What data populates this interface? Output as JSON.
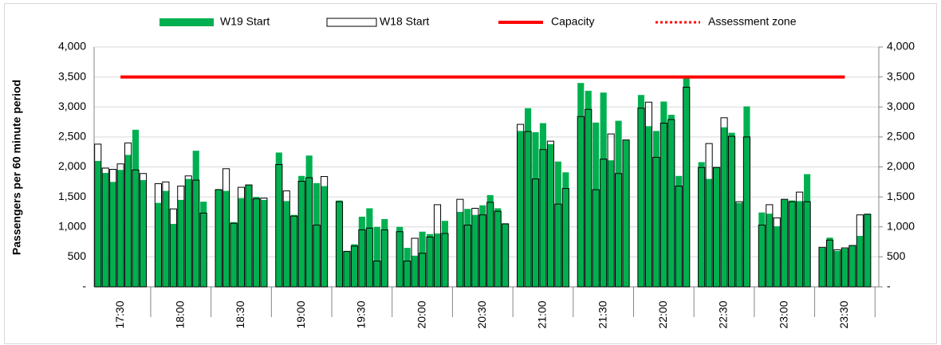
{
  "chart_data": {
    "type": "bar",
    "ylabel": "Passengers per 60 minute period",
    "categories": [
      null,
      null,
      null,
      "17:30",
      null,
      null,
      null,
      null,
      null,
      null,
      null,
      "18:00",
      null,
      null,
      null,
      null,
      null,
      null,
      null,
      "18:30",
      null,
      null,
      null,
      null,
      null,
      null,
      null,
      "19:00",
      null,
      null,
      null,
      null,
      null,
      null,
      null,
      "19:30",
      null,
      null,
      null,
      null,
      null,
      null,
      null,
      "20:00",
      null,
      null,
      null,
      null,
      null,
      null,
      null,
      "20:30",
      null,
      null,
      null,
      null,
      null,
      null,
      null,
      "21:00",
      null,
      null,
      null,
      null,
      null,
      null,
      null,
      "21:30",
      null,
      null,
      null,
      null,
      null,
      null,
      null,
      "22:00",
      null,
      null,
      null,
      null,
      null,
      null,
      null,
      "22:30",
      null,
      null,
      null,
      null,
      null,
      null,
      null,
      "23:00",
      null,
      null,
      null,
      null,
      null,
      null,
      null,
      "23:30",
      null,
      null,
      null,
      null
    ],
    "series": [
      {
        "name": "W19 Start",
        "kind": "bar",
        "color": "#00b050",
        "values": [
          2100,
          1900,
          1750,
          1950,
          2200,
          2620,
          1780,
          null,
          1400,
          1600,
          1050,
          1450,
          1800,
          2270,
          1420,
          null,
          1630,
          1600,
          1080,
          1480,
          1700,
          1500,
          1450,
          null,
          2240,
          1430,
          1200,
          1850,
          2190,
          1730,
          1680,
          null,
          1440,
          600,
          710,
          1170,
          1310,
          1000,
          1130,
          null,
          1000,
          650,
          520,
          920,
          880,
          890,
          1100,
          null,
          1250,
          1300,
          1200,
          1360,
          1530,
          1310,
          1060,
          null,
          2600,
          2980,
          2580,
          2730,
          2380,
          2090,
          1910,
          null,
          3400,
          3270,
          2740,
          3240,
          2110,
          2770,
          2450,
          null,
          3200,
          2680,
          2600,
          3090,
          2870,
          1850,
          3490,
          null,
          2080,
          1800,
          2000,
          2660,
          2570,
          1400,
          3010,
          null,
          1240,
          1220,
          1010,
          1460,
          1440,
          1430,
          1880,
          null,
          650,
          820,
          600,
          640,
          690,
          850,
          1220,
          null
        ]
      },
      {
        "name": "W18 Start",
        "kind": "outline",
        "color": "#000000",
        "values": [
          2380,
          1980,
          1960,
          2050,
          2400,
          1950,
          1890,
          null,
          1720,
          1750,
          1300,
          1680,
          1850,
          1780,
          1230,
          null,
          1620,
          1970,
          1060,
          1660,
          1700,
          1470,
          1480,
          null,
          2040,
          1600,
          1180,
          1760,
          1820,
          1030,
          1840,
          null,
          1420,
          590,
          680,
          950,
          980,
          430,
          950,
          null,
          920,
          430,
          810,
          560,
          830,
          1370,
          890,
          null,
          1460,
          1030,
          1310,
          1200,
          1410,
          1260,
          1050,
          null,
          2710,
          2590,
          1800,
          2290,
          2430,
          1380,
          1640,
          null,
          2840,
          2960,
          1620,
          2130,
          2550,
          1890,
          2450,
          null,
          2980,
          3080,
          2160,
          2730,
          2790,
          1680,
          3330,
          null,
          1990,
          2390,
          1990,
          2820,
          2510,
          1420,
          2500,
          null,
          1030,
          1370,
          1150,
          1460,
          1420,
          1580,
          1420,
          null,
          660,
          780,
          620,
          650,
          690,
          1200,
          1210,
          null
        ]
      },
      {
        "name": "Capacity",
        "kind": "line",
        "color": "#ff0000",
        "values": [
          null,
          null,
          null,
          3500,
          3500,
          3500,
          3500,
          3500,
          3500,
          3500,
          3500,
          3500,
          3500,
          3500,
          3500,
          3500,
          3500,
          3500,
          3500,
          3500,
          3500,
          3500,
          3500,
          3500,
          3500,
          3500,
          3500,
          3500,
          3500,
          3500,
          3500,
          3500,
          3500,
          3500,
          3500,
          3500,
          3500,
          3500,
          3500,
          3500,
          3500,
          3500,
          3500,
          3500,
          3500,
          3500,
          3500,
          3500,
          3500,
          3500,
          3500,
          3500,
          3500,
          3500,
          3500,
          3500,
          3500,
          3500,
          3500,
          3500,
          3500,
          3500,
          3500,
          3500,
          3500,
          3500,
          3500,
          3500,
          3500,
          3500,
          3500,
          3500,
          3500,
          3500,
          3500,
          3500,
          3500,
          3500,
          3500,
          3500,
          3500,
          3500,
          3500,
          3500,
          3500,
          3500,
          3500,
          3500,
          3500,
          3500,
          3500,
          3500,
          3500,
          3500,
          3500,
          3500,
          3500,
          3500,
          3500,
          3500,
          null,
          null,
          null,
          null
        ]
      },
      {
        "name": "Assessment zone",
        "kind": "dotted",
        "color": "#ff0000",
        "values": [
          null,
          null,
          null,
          null,
          null,
          null,
          null,
          null,
          null,
          null,
          null,
          null,
          null,
          null,
          null,
          null,
          null,
          null,
          null,
          null,
          null,
          null,
          null,
          null,
          null,
          null,
          null,
          null,
          null,
          null,
          null,
          null,
          null,
          null,
          null,
          null,
          null,
          null,
          null,
          null,
          null,
          null,
          null,
          null,
          null,
          null,
          null,
          null,
          null,
          null,
          null,
          null,
          null,
          null,
          null,
          null,
          null,
          null,
          null,
          null,
          null,
          null,
          null,
          null,
          null,
          null,
          null,
          null,
          null,
          null,
          null,
          null,
          null,
          null,
          null,
          null,
          null,
          null,
          null,
          null,
          null,
          null,
          null,
          null,
          null,
          null,
          null,
          null,
          null,
          null,
          null,
          null,
          null,
          null,
          null,
          null,
          null,
          null,
          null,
          null,
          null,
          null,
          null,
          null
        ]
      }
    ],
    "ylim": [
      0,
      4000
    ],
    "yticks": [
      {
        "value": 0,
        "label": "-"
      },
      500,
      {
        "value": 1000,
        "label": "1,000"
      },
      {
        "value": 1500,
        "label": "1,500"
      },
      {
        "value": 2000,
        "label": "2,000"
      },
      {
        "value": 2500,
        "label": "2,500"
      },
      {
        "value": 3000,
        "label": "3,000"
      },
      {
        "value": 3500,
        "label": "3,500"
      },
      {
        "value": 4000,
        "label": "4,000"
      }
    ],
    "y2lim": [
      0,
      4000
    ],
    "y2ticks": [
      {
        "value": 0,
        "label": "-"
      },
      500,
      {
        "value": 1000,
        "label": "1,000"
      },
      {
        "value": 1500,
        "label": "1,500"
      },
      {
        "value": 2000,
        "label": "2,000"
      },
      {
        "value": 2500,
        "label": "2,500"
      },
      {
        "value": 3000,
        "label": "3,000"
      },
      {
        "value": 3500,
        "label": "3,500"
      },
      {
        "value": 4000,
        "label": "4,000"
      }
    ],
    "grid": true
  }
}
